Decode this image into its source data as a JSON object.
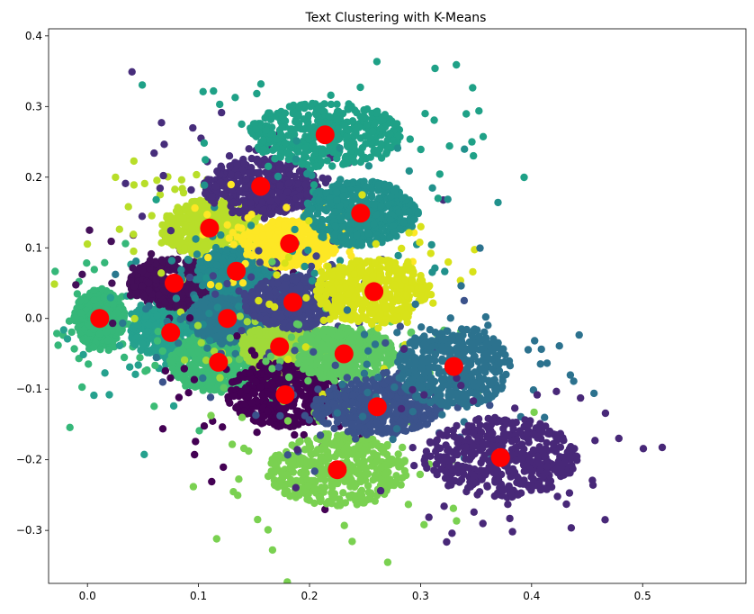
{
  "chart_data": {
    "type": "scatter",
    "title": "Text Clustering with K-Means",
    "xlabel": "",
    "ylabel": "",
    "xlim": [
      -0.035,
      0.593
    ],
    "ylim": [
      -0.375,
      0.41
    ],
    "x_ticks": [
      {
        "value": 0.0,
        "label": "0.0"
      },
      {
        "value": 0.1,
        "label": "0.1"
      },
      {
        "value": 0.2,
        "label": "0.2"
      },
      {
        "value": 0.3,
        "label": "0.3"
      },
      {
        "value": 0.4,
        "label": "0.4"
      },
      {
        "value": 0.5,
        "label": "0.5"
      }
    ],
    "y_ticks": [
      {
        "value": 0.4,
        "label": "0.4"
      },
      {
        "value": 0.3,
        "label": "0.3"
      },
      {
        "value": 0.2,
        "label": "0.2"
      },
      {
        "value": 0.1,
        "label": "0.1"
      },
      {
        "value": 0.0,
        "label": "0.0"
      },
      {
        "value": -0.1,
        "label": "−0.1"
      },
      {
        "value": -0.2,
        "label": "−0.2"
      },
      {
        "value": -0.3,
        "label": "−0.3"
      }
    ],
    "grid": false,
    "legend": "none",
    "centroid_color": "#ff0000",
    "clusters": [
      {
        "center": [
          0.011,
          0.0
        ],
        "spread": [
          0.02,
          0.035
        ],
        "color": "#35b779"
      },
      {
        "center": [
          0.075,
          -0.02
        ],
        "spread": [
          0.032,
          0.033
        ],
        "color": "#25a18e"
      },
      {
        "center": [
          0.078,
          0.05
        ],
        "spread": [
          0.035,
          0.03
        ],
        "color": "#440f59"
      },
      {
        "center": [
          0.11,
          0.128
        ],
        "spread": [
          0.038,
          0.035
        ],
        "color": "#b8de29"
      },
      {
        "center": [
          0.118,
          -0.062
        ],
        "spread": [
          0.038,
          0.035
        ],
        "color": "#3cbc75"
      },
      {
        "center": [
          0.126,
          0.0
        ],
        "spread": [
          0.03,
          0.03
        ],
        "color": "#2a788e"
      },
      {
        "center": [
          0.134,
          0.067
        ],
        "spread": [
          0.03,
          0.028
        ],
        "color": "#23898e"
      },
      {
        "center": [
          0.156,
          0.187
        ],
        "spread": [
          0.045,
          0.035
        ],
        "color": "#472d7b"
      },
      {
        "center": [
          0.173,
          -0.04
        ],
        "spread": [
          0.03,
          0.03
        ],
        "color": "#a0da39"
      },
      {
        "center": [
          0.178,
          -0.108
        ],
        "spread": [
          0.045,
          0.04
        ],
        "color": "#440154"
      },
      {
        "center": [
          0.182,
          0.106
        ],
        "spread": [
          0.038,
          0.03
        ],
        "color": "#fde725"
      },
      {
        "center": [
          0.185,
          0.023
        ],
        "spread": [
          0.035,
          0.033
        ],
        "color": "#414487"
      },
      {
        "center": [
          0.214,
          0.26
        ],
        "spread": [
          0.06,
          0.04
        ],
        "color": "#1fa187"
      },
      {
        "center": [
          0.225,
          -0.214
        ],
        "spread": [
          0.055,
          0.045
        ],
        "color": "#7ad151"
      },
      {
        "center": [
          0.231,
          -0.05
        ],
        "spread": [
          0.04,
          0.033
        ],
        "color": "#5ec962"
      },
      {
        "center": [
          0.246,
          0.149
        ],
        "spread": [
          0.045,
          0.04
        ],
        "color": "#21918c"
      },
      {
        "center": [
          0.258,
          0.038
        ],
        "spread": [
          0.045,
          0.04
        ],
        "color": "#d8e219"
      },
      {
        "center": [
          0.261,
          -0.125
        ],
        "spread": [
          0.05,
          0.035
        ],
        "color": "#3b528b"
      },
      {
        "center": [
          0.33,
          -0.068
        ],
        "spread": [
          0.045,
          0.05
        ],
        "color": "#2c728e"
      },
      {
        "center": [
          0.372,
          -0.197
        ],
        "spread": [
          0.06,
          0.05
        ],
        "color": "#482878"
      }
    ]
  }
}
